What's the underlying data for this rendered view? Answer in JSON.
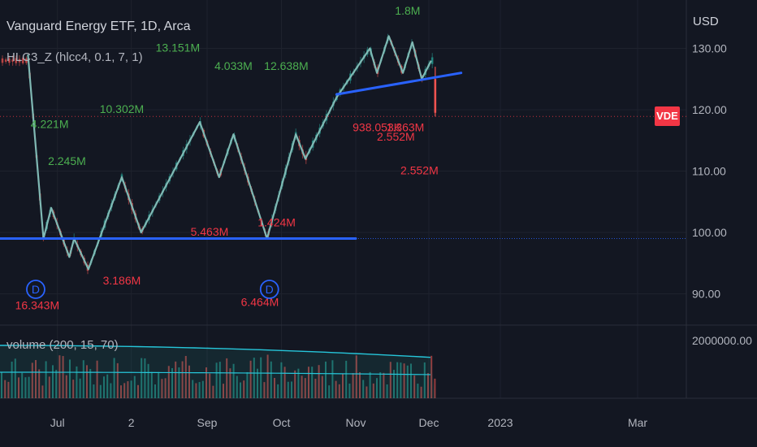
{
  "header": {
    "title": "Vanguard Energy ETF, 1D, Arca",
    "indicator_label": "HLC3_Z (hlcc4, 0.1, 7, 1)",
    "volume_label": "volume (200, 15, 70)",
    "currency": "USD",
    "symbol_badge": "VDE"
  },
  "colors": {
    "background": "#131722",
    "grid": "#1e222d",
    "up_candle": "#26a69a",
    "down_candle": "#ef5350",
    "zigzag": "#80b9b4",
    "trendline": "#2962ff",
    "green_label": "#4caf50",
    "red_label": "#f23645"
  },
  "chart_data": [
    {
      "type": "line",
      "title": "Vanguard Energy ETF, 1D, Arca",
      "xlabel": "",
      "ylabel": "",
      "x_ticks": [
        "Jul",
        "2",
        "Sep",
        "Oct",
        "Nov",
        "Dec",
        "2023",
        "Mar"
      ],
      "y_ticks": [
        90,
        100,
        110,
        120,
        130
      ],
      "ylim": [
        86,
        135
      ],
      "grid": true,
      "last_price": 118.9,
      "series": [
        {
          "name": "HLC3_Z (hlcc4, 0.1, 7, 1)",
          "points": [
            {
              "x": "Jun 13",
              "y": 129
            },
            {
              "x": "Jun 23",
              "y": 99
            },
            {
              "x": "Jun 28",
              "y": 104
            },
            {
              "x": "Jul 6",
              "y": 96
            },
            {
              "x": "Jul 8",
              "y": 99
            },
            {
              "x": "Jul 14",
              "y": 94
            },
            {
              "x": "Jul 28",
              "y": 109
            },
            {
              "x": "Aug 5",
              "y": 100
            },
            {
              "x": "Aug 29",
              "y": 118
            },
            {
              "x": "Sep 6",
              "y": 109
            },
            {
              "x": "Sep 12",
              "y": 116
            },
            {
              "x": "Sep 26",
              "y": 99
            },
            {
              "x": "Oct 7",
              "y": 116
            },
            {
              "x": "Oct 11",
              "y": 112
            },
            {
              "x": "Oct 24",
              "y": 122
            },
            {
              "x": "Nov 7",
              "y": 130
            },
            {
              "x": "Nov 10",
              "y": 126
            },
            {
              "x": "Nov 15",
              "y": 132
            },
            {
              "x": "Nov 21",
              "y": 126
            },
            {
              "x": "Nov 25",
              "y": 131
            },
            {
              "x": "Nov 29",
              "y": 125
            },
            {
              "x": "Dec 2",
              "y": 128
            }
          ]
        }
      ],
      "lines": [
        {
          "from": {
            "x": "Jun 10",
            "y": 99
          },
          "to": {
            "x": "Nov 1",
            "y": 99
          }
        },
        {
          "from": {
            "x": "Oct 24",
            "y": 122.5
          },
          "to": {
            "x": "Dec 15",
            "y": 126
          }
        }
      ],
      "annotations": [
        {
          "text": "1.8M",
          "x": "Nov 23",
          "y": 135.5,
          "color": "green"
        },
        {
          "text": "13.151M",
          "x": "Aug 20",
          "y": 129.5,
          "color": "green"
        },
        {
          "text": "4.033M",
          "x": "Sep 12",
          "y": 126.5,
          "color": "green"
        },
        {
          "text": "12.638M",
          "x": "Oct 3",
          "y": 126.5,
          "color": "green"
        },
        {
          "text": "10.302M",
          "x": "Jul 28",
          "y": 119.5,
          "color": "green"
        },
        {
          "text": "4.221M",
          "x": "Jun 27",
          "y": 117,
          "color": "green"
        },
        {
          "text": "2.245M",
          "x": "Jul 5",
          "y": 111,
          "color": "green"
        },
        {
          "text": "938.053K",
          "x": "Nov 10",
          "y": 116.5,
          "color": "red"
        },
        {
          "text": "1.363M",
          "x": "Nov 22",
          "y": 116.5,
          "color": "red"
        },
        {
          "text": "2.552M",
          "x": "Nov 18",
          "y": 115,
          "color": "red"
        },
        {
          "text": "2.552M",
          "x": "Nov 28",
          "y": 109.5,
          "color": "red"
        },
        {
          "text": "1.424M",
          "x": "Sep 30",
          "y": 101,
          "color": "red"
        },
        {
          "text": "5.463M",
          "x": "Sep 2",
          "y": 99.5,
          "color": "red"
        },
        {
          "text": "3.186M",
          "x": "Jul 28",
          "y": 91.5,
          "color": "red"
        },
        {
          "text": "16.343M",
          "x": "Jun 19",
          "y": 87.5,
          "color": "red"
        },
        {
          "text": "6.464M",
          "x": "Sep 23",
          "y": 88,
          "color": "red"
        }
      ],
      "markers": [
        {
          "label": "D",
          "x": "Jun 18"
        },
        {
          "label": "D",
          "x": "Sep 27"
        }
      ]
    },
    {
      "type": "bar",
      "title": "volume (200, 15, 70)",
      "y_ticks": [
        2000000
      ],
      "y_tick_labels": [
        "2000000.00"
      ]
    }
  ]
}
